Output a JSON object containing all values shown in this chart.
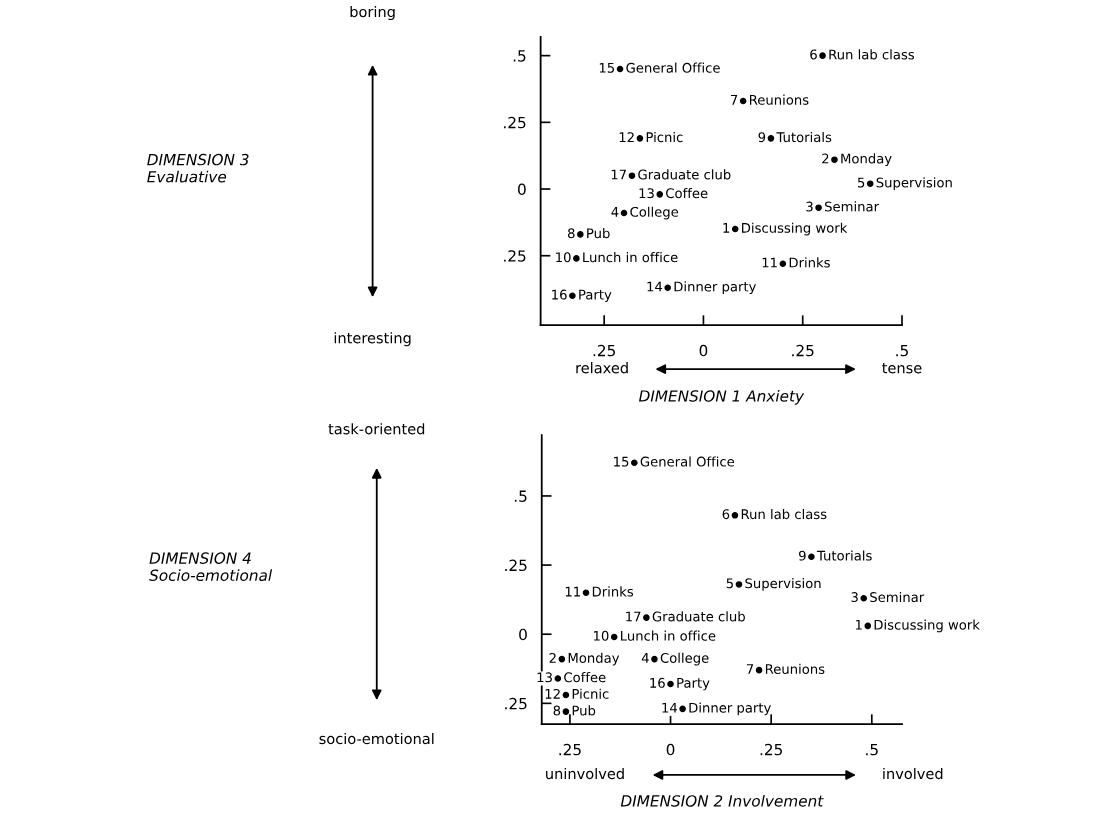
{
  "chart_data": [
    {
      "type": "scatter",
      "xlabel": "DIMENSION 1 Anxiety",
      "ylabel": "DIMENSION 3\nEvaluative",
      "marker": "circle",
      "xlim": [
        -0.41,
        0.5
      ],
      "ylim": [
        -0.51,
        0.57
      ],
      "xticks": [
        {
          "value": -0.25,
          "label": ".25"
        },
        0,
        {
          "value": 0.25,
          "label": ".25"
        },
        {
          "value": 0.5,
          "label": ".5"
        }
      ],
      "yticks": [
        {
          "value": -0.25,
          "label": ".25"
        },
        0,
        {
          "value": 0.25,
          "label": ".25"
        },
        {
          "value": 0.5,
          "label": ".5"
        }
      ],
      "x": [
        0.3,
        -0.21,
        0.1,
        -0.16,
        0.17,
        0.33,
        -0.18,
        0.42,
        -0.11,
        0.29,
        -0.2,
        0.08,
        -0.31,
        -0.32,
        0.2,
        -0.09,
        -0.33
      ],
      "series": [
        {
          "color": "#000000",
          "values": [
            0.5,
            0.45,
            0.33,
            0.19,
            0.19,
            0.11,
            0.05,
            0.02,
            -0.02,
            -0.07,
            -0.09,
            -0.15,
            -0.17,
            -0.26,
            -0.28,
            -0.37,
            -0.4
          ]
        }
      ],
      "annotations": [
        "boring",
        "interesting",
        "relaxed",
        "tense",
        {
          "text": "6",
          "x": 0.3,
          "y": 0.5
        },
        {
          "text": "Run lab class",
          "x": 0.3,
          "y": 0.5
        },
        {
          "text": "15",
          "x": -0.21,
          "y": 0.45
        },
        {
          "text": "General Office",
          "x": -0.21,
          "y": 0.45
        },
        {
          "text": "7",
          "x": 0.1,
          "y": 0.33
        },
        {
          "text": "Reunions",
          "x": 0.1,
          "y": 0.33
        },
        {
          "text": "12",
          "x": -0.16,
          "y": 0.19
        },
        {
          "text": "Picnic",
          "x": -0.16,
          "y": 0.19
        },
        {
          "text": "9",
          "x": 0.17,
          "y": 0.19
        },
        {
          "text": "Tutorials",
          "x": 0.17,
          "y": 0.19
        },
        {
          "text": "2",
          "x": 0.33,
          "y": 0.11
        },
        {
          "text": "Monday",
          "x": 0.33,
          "y": 0.11
        },
        {
          "text": "17",
          "x": -0.18,
          "y": 0.05
        },
        {
          "text": "Graduate club",
          "x": -0.18,
          "y": 0.05
        },
        {
          "text": "5",
          "x": 0.42,
          "y": 0.02
        },
        {
          "text": "Supervision",
          "x": 0.42,
          "y": 0.02
        },
        {
          "text": "13",
          "x": -0.11,
          "y": -0.02
        },
        {
          "text": "Coffee",
          "x": -0.11,
          "y": -0.02
        },
        {
          "text": "3",
          "x": 0.29,
          "y": -0.07
        },
        {
          "text": "Seminar",
          "x": 0.29,
          "y": -0.07
        },
        {
          "text": "4",
          "x": -0.2,
          "y": -0.09
        },
        {
          "text": "College",
          "x": -0.2,
          "y": -0.09
        },
        {
          "text": "1",
          "x": 0.08,
          "y": -0.15
        },
        {
          "text": "Discussing work",
          "x": 0.08,
          "y": -0.15
        },
        {
          "text": "8",
          "x": -0.31,
          "y": -0.17
        },
        {
          "text": "Pub",
          "x": -0.31,
          "y": -0.17
        },
        {
          "text": "10",
          "x": -0.32,
          "y": -0.26
        },
        {
          "text": "Lunch in office",
          "x": -0.32,
          "y": -0.26
        },
        {
          "text": "11",
          "x": 0.2,
          "y": -0.28
        },
        {
          "text": "Drinks",
          "x": 0.2,
          "y": -0.28
        },
        {
          "text": "14",
          "x": -0.09,
          "y": -0.37
        },
        {
          "text": "Dinner party",
          "x": -0.09,
          "y": -0.37
        },
        {
          "text": "16",
          "x": -0.33,
          "y": -0.4
        },
        {
          "text": "Party",
          "x": -0.33,
          "y": -0.4
        }
      ]
    },
    {
      "type": "scatter",
      "xlabel": "DIMENSION 2 Involvement",
      "ylabel": "DIMENSION 4\nSocio-emotional",
      "marker": "circle",
      "xlim": [
        -0.32,
        0.575
      ],
      "ylim": [
        -0.325,
        0.72
      ],
      "xticks": [
        {
          "value": -0.25,
          "label": ".25"
        },
        0,
        {
          "value": 0.25,
          "label": ".25"
        },
        {
          "value": 0.5,
          "label": ".5"
        }
      ],
      "yticks": [
        {
          "value": -0.25,
          "label": ".25"
        },
        0,
        {
          "value": 0.25,
          "label": ".25"
        },
        {
          "value": 0.5,
          "label": ".5"
        }
      ],
      "x": [
        -0.09,
        0.16,
        0.35,
        0.17,
        -0.21,
        0.48,
        -0.06,
        0.49,
        -0.14,
        -0.27,
        -0.04,
        0.22,
        -0.28,
        0.0,
        -0.26,
        -0.26,
        0.03
      ],
      "series": [
        {
          "color": "#000000",
          "values": [
            0.62,
            0.43,
            0.28,
            0.18,
            0.15,
            0.13,
            0.06,
            0.03,
            -0.01,
            -0.09,
            -0.09,
            -0.13,
            -0.16,
            -0.18,
            -0.22,
            -0.28,
            -0.27
          ]
        }
      ],
      "annotations": [
        "task-oriented",
        "socio-emotional",
        "uninvolved",
        "involved",
        {
          "text": "15",
          "x": -0.09,
          "y": 0.62
        },
        {
          "text": "General Office",
          "x": -0.09,
          "y": 0.62
        },
        {
          "text": "6",
          "x": 0.16,
          "y": 0.43
        },
        {
          "text": "Run lab class",
          "x": 0.16,
          "y": 0.43
        },
        {
          "text": "9",
          "x": 0.35,
          "y": 0.28
        },
        {
          "text": "Tutorials",
          "x": 0.35,
          "y": 0.28
        },
        {
          "text": "5",
          "x": 0.17,
          "y": 0.18
        },
        {
          "text": "Supervision",
          "x": 0.17,
          "y": 0.18
        },
        {
          "text": "11",
          "x": -0.21,
          "y": 0.15
        },
        {
          "text": "Drinks",
          "x": -0.21,
          "y": 0.15
        },
        {
          "text": "3",
          "x": 0.48,
          "y": 0.13
        },
        {
          "text": "Seminar",
          "x": 0.48,
          "y": 0.13
        },
        {
          "text": "17",
          "x": -0.06,
          "y": 0.06
        },
        {
          "text": "Graduate club",
          "x": -0.06,
          "y": 0.06
        },
        {
          "text": "1",
          "x": 0.49,
          "y": 0.03
        },
        {
          "text": "Discussing work",
          "x": 0.49,
          "y": 0.03
        },
        {
          "text": "10",
          "x": -0.14,
          "y": -0.01
        },
        {
          "text": "Lunch in office",
          "x": -0.14,
          "y": -0.01
        },
        {
          "text": "2",
          "x": -0.27,
          "y": -0.09
        },
        {
          "text": "Monday",
          "x": -0.27,
          "y": -0.09
        },
        {
          "text": "4",
          "x": -0.04,
          "y": -0.09
        },
        {
          "text": "College",
          "x": -0.04,
          "y": -0.09
        },
        {
          "text": "7",
          "x": 0.22,
          "y": -0.13
        },
        {
          "text": "Reunions",
          "x": 0.22,
          "y": -0.13
        },
        {
          "text": "13",
          "x": -0.28,
          "y": -0.16
        },
        {
          "text": "Coffee",
          "x": -0.28,
          "y": -0.16
        },
        {
          "text": "16",
          "x": 0.0,
          "y": -0.18
        },
        {
          "text": "Party",
          "x": 0.0,
          "y": -0.18
        },
        {
          "text": "12",
          "x": -0.26,
          "y": -0.22
        },
        {
          "text": "Picnic",
          "x": -0.26,
          "y": -0.22
        },
        {
          "text": "8",
          "x": -0.26,
          "y": -0.28
        },
        {
          "text": "Pub",
          "x": -0.26,
          "y": -0.28
        },
        {
          "text": "14",
          "x": 0.03,
          "y": -0.27
        },
        {
          "text": "Dinner party",
          "x": 0.03,
          "y": -0.27
        }
      ]
    }
  ]
}
